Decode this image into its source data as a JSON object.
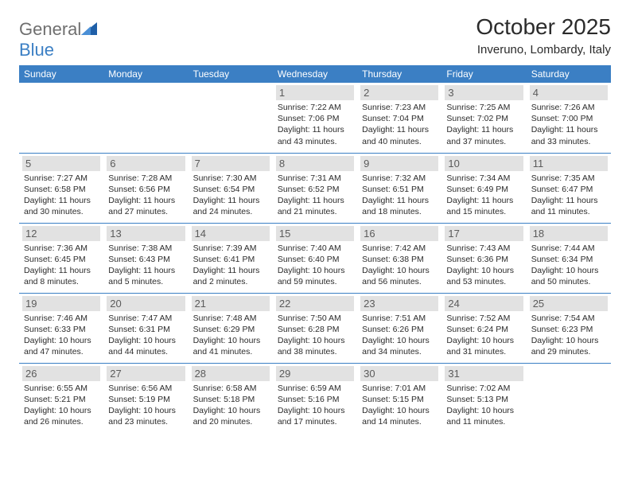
{
  "brand": {
    "part1": "General",
    "part2": "Blue"
  },
  "title": "October 2025",
  "location": "Inveruno, Lombardy, Italy",
  "headerBg": "#3b7fc4",
  "dayHeaders": [
    "Sunday",
    "Monday",
    "Tuesday",
    "Wednesday",
    "Thursday",
    "Friday",
    "Saturday"
  ],
  "weeks": [
    [
      null,
      null,
      null,
      {
        "n": "1",
        "sr": "7:22 AM",
        "ss": "7:06 PM",
        "dl": "11 hours and 43 minutes."
      },
      {
        "n": "2",
        "sr": "7:23 AM",
        "ss": "7:04 PM",
        "dl": "11 hours and 40 minutes."
      },
      {
        "n": "3",
        "sr": "7:25 AM",
        "ss": "7:02 PM",
        "dl": "11 hours and 37 minutes."
      },
      {
        "n": "4",
        "sr": "7:26 AM",
        "ss": "7:00 PM",
        "dl": "11 hours and 33 minutes."
      }
    ],
    [
      {
        "n": "5",
        "sr": "7:27 AM",
        "ss": "6:58 PM",
        "dl": "11 hours and 30 minutes."
      },
      {
        "n": "6",
        "sr": "7:28 AM",
        "ss": "6:56 PM",
        "dl": "11 hours and 27 minutes."
      },
      {
        "n": "7",
        "sr": "7:30 AM",
        "ss": "6:54 PM",
        "dl": "11 hours and 24 minutes."
      },
      {
        "n": "8",
        "sr": "7:31 AM",
        "ss": "6:52 PM",
        "dl": "11 hours and 21 minutes."
      },
      {
        "n": "9",
        "sr": "7:32 AM",
        "ss": "6:51 PM",
        "dl": "11 hours and 18 minutes."
      },
      {
        "n": "10",
        "sr": "7:34 AM",
        "ss": "6:49 PM",
        "dl": "11 hours and 15 minutes."
      },
      {
        "n": "11",
        "sr": "7:35 AM",
        "ss": "6:47 PM",
        "dl": "11 hours and 11 minutes."
      }
    ],
    [
      {
        "n": "12",
        "sr": "7:36 AM",
        "ss": "6:45 PM",
        "dl": "11 hours and 8 minutes."
      },
      {
        "n": "13",
        "sr": "7:38 AM",
        "ss": "6:43 PM",
        "dl": "11 hours and 5 minutes."
      },
      {
        "n": "14",
        "sr": "7:39 AM",
        "ss": "6:41 PM",
        "dl": "11 hours and 2 minutes."
      },
      {
        "n": "15",
        "sr": "7:40 AM",
        "ss": "6:40 PM",
        "dl": "10 hours and 59 minutes."
      },
      {
        "n": "16",
        "sr": "7:42 AM",
        "ss": "6:38 PM",
        "dl": "10 hours and 56 minutes."
      },
      {
        "n": "17",
        "sr": "7:43 AM",
        "ss": "6:36 PM",
        "dl": "10 hours and 53 minutes."
      },
      {
        "n": "18",
        "sr": "7:44 AM",
        "ss": "6:34 PM",
        "dl": "10 hours and 50 minutes."
      }
    ],
    [
      {
        "n": "19",
        "sr": "7:46 AM",
        "ss": "6:33 PM",
        "dl": "10 hours and 47 minutes."
      },
      {
        "n": "20",
        "sr": "7:47 AM",
        "ss": "6:31 PM",
        "dl": "10 hours and 44 minutes."
      },
      {
        "n": "21",
        "sr": "7:48 AM",
        "ss": "6:29 PM",
        "dl": "10 hours and 41 minutes."
      },
      {
        "n": "22",
        "sr": "7:50 AM",
        "ss": "6:28 PM",
        "dl": "10 hours and 38 minutes."
      },
      {
        "n": "23",
        "sr": "7:51 AM",
        "ss": "6:26 PM",
        "dl": "10 hours and 34 minutes."
      },
      {
        "n": "24",
        "sr": "7:52 AM",
        "ss": "6:24 PM",
        "dl": "10 hours and 31 minutes."
      },
      {
        "n": "25",
        "sr": "7:54 AM",
        "ss": "6:23 PM",
        "dl": "10 hours and 29 minutes."
      }
    ],
    [
      {
        "n": "26",
        "sr": "6:55 AM",
        "ss": "5:21 PM",
        "dl": "10 hours and 26 minutes."
      },
      {
        "n": "27",
        "sr": "6:56 AM",
        "ss": "5:19 PM",
        "dl": "10 hours and 23 minutes."
      },
      {
        "n": "28",
        "sr": "6:58 AM",
        "ss": "5:18 PM",
        "dl": "10 hours and 20 minutes."
      },
      {
        "n": "29",
        "sr": "6:59 AM",
        "ss": "5:16 PM",
        "dl": "10 hours and 17 minutes."
      },
      {
        "n": "30",
        "sr": "7:01 AM",
        "ss": "5:15 PM",
        "dl": "10 hours and 14 minutes."
      },
      {
        "n": "31",
        "sr": "7:02 AM",
        "ss": "5:13 PM",
        "dl": "10 hours and 11 minutes."
      },
      null
    ]
  ],
  "labels": {
    "sunrise": "Sunrise:",
    "sunset": "Sunset:",
    "daylight": "Daylight:"
  }
}
